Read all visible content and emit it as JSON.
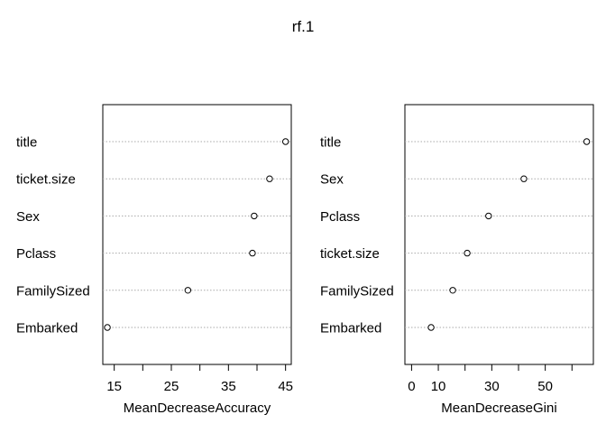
{
  "title": "rf.1",
  "chart_data": [
    {
      "type": "dotchart",
      "xlabel": "MeanDecreaseAccuracy",
      "labels": [
        "title",
        "ticket.size",
        "Sex",
        "Pclass",
        "FamilySized",
        "Embarked"
      ],
      "values": [
        45.0,
        42.2,
        39.5,
        39.2,
        27.9,
        13.8
      ],
      "xticks": [
        15,
        20,
        25,
        30,
        35,
        40,
        45
      ],
      "xticklabels": [
        "15",
        "",
        "25",
        "",
        "35",
        "",
        "45"
      ],
      "xlim": [
        13.0,
        46.0
      ]
    },
    {
      "type": "dotchart",
      "xlabel": "MeanDecreaseGini",
      "labels": [
        "title",
        "Sex",
        "Pclass",
        "ticket.size",
        "FamilySized",
        "Embarked"
      ],
      "values": [
        65.5,
        42.0,
        28.8,
        20.8,
        15.4,
        7.3
      ],
      "xticks": [
        0,
        10,
        20,
        30,
        40,
        50,
        60
      ],
      "xticklabels": [
        "0",
        "10",
        "",
        "30",
        "",
        "50",
        ""
      ],
      "xlim": [
        -2.5,
        68.0
      ]
    }
  ]
}
